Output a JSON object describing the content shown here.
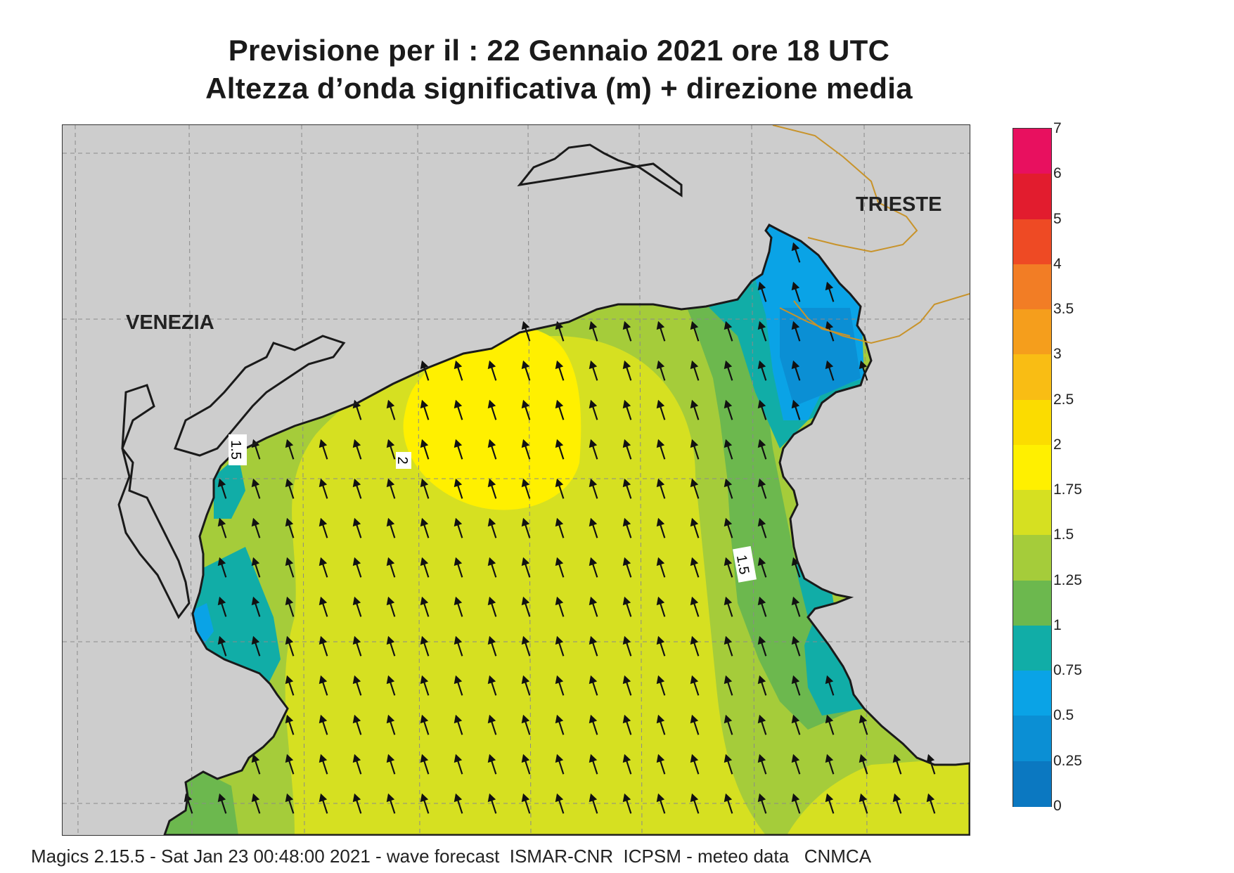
{
  "header": {
    "title_line1": "Previsione per il  :  22  Gennaio  2021    ore 18 UTC",
    "title_line2": "Altezza d’onda significativa (m) + direzione media"
  },
  "map": {
    "cities": [
      "VENEZIA",
      "TRIESTE"
    ],
    "contour_labels": [
      "1.5",
      "2",
      "1.5"
    ],
    "arrow_direction": "north-northwest",
    "colors": {
      "land": "#cdcdcd",
      "coast": "#1a1a1a",
      "border": "#c8932a",
      "grid": "#8a8a8a"
    }
  },
  "legend": {
    "labels": [
      "7",
      "6",
      "5",
      "4",
      "3.5",
      "3",
      "2.5",
      "2",
      "1.75",
      "1.5",
      "1.25",
      "1",
      "0.75",
      "0.5",
      "0.25",
      "0"
    ],
    "colors": [
      "#e8105f",
      "#e21c2e",
      "#ee4a24",
      "#f27d25",
      "#f59e1c",
      "#f9bd14",
      "#fbdc00",
      "#fff000",
      "#d6e021",
      "#a5cc3a",
      "#6cb84e",
      "#11ada7",
      "#0aa3e6",
      "#0b8fd4",
      "#0b78c1",
      "#0663b0"
    ]
  },
  "footer": {
    "text": "Magics 2.15.5 - Sat Jan 23 00:48:00 2021 - wave forecast  ISMAR-CNR  ICPSM - meteo data   CNMCA"
  }
}
